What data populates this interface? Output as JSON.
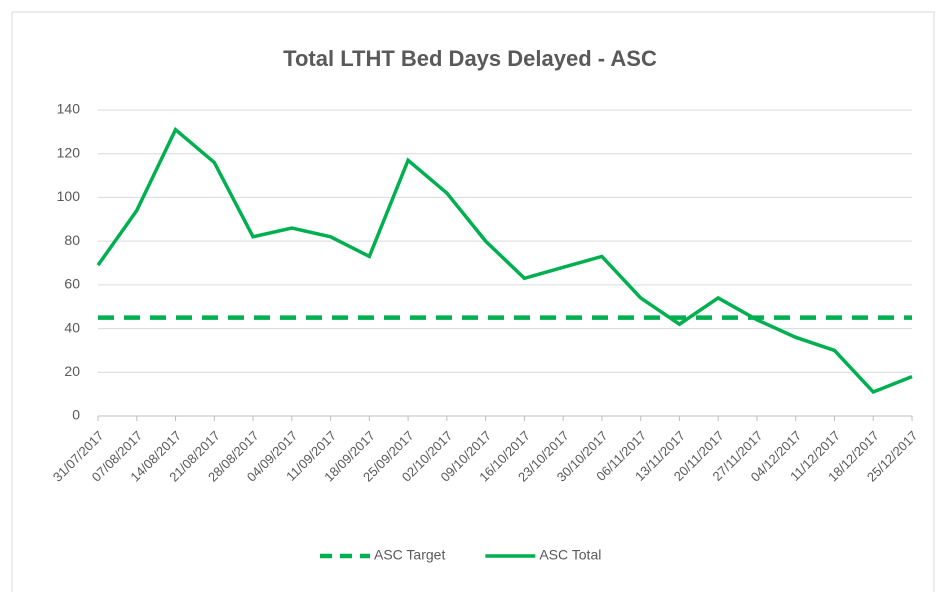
{
  "chart_data": {
    "type": "line",
    "title": "Total LTHT Bed Days Delayed - ASC",
    "categories": [
      "31/07/2017",
      "07/08/2017",
      "14/08/2017",
      "21/08/2017",
      "28/08/2017",
      "04/09/2017",
      "11/09/2017",
      "18/09/2017",
      "25/09/2017",
      "02/10/2017",
      "09/10/2017",
      "16/10/2017",
      "23/10/2017",
      "30/10/2017",
      "06/11/2017",
      "13/11/2017",
      "20/11/2017",
      "27/11/2017",
      "04/12/2017",
      "11/12/2017",
      "18/12/2017",
      "25/12/2017"
    ],
    "series": [
      {
        "name": "ASC Target",
        "color": "#00b050",
        "dashed": true,
        "values": [
          45,
          45,
          45,
          45,
          45,
          45,
          45,
          45,
          45,
          45,
          45,
          45,
          45,
          45,
          45,
          45,
          45,
          45,
          45,
          45,
          45,
          45
        ]
      },
      {
        "name": "ASC Total",
        "color": "#00b050",
        "dashed": false,
        "values": [
          69,
          94,
          131,
          116,
          82,
          86,
          82,
          73,
          117,
          102,
          80,
          63,
          68,
          73,
          54,
          42,
          54,
          44,
          36,
          30,
          11,
          18
        ]
      }
    ],
    "ylim": [
      0,
      140
    ],
    "yticks": [
      0,
      20,
      40,
      60,
      80,
      100,
      120,
      140
    ],
    "grid": true,
    "legend": "bottom"
  }
}
